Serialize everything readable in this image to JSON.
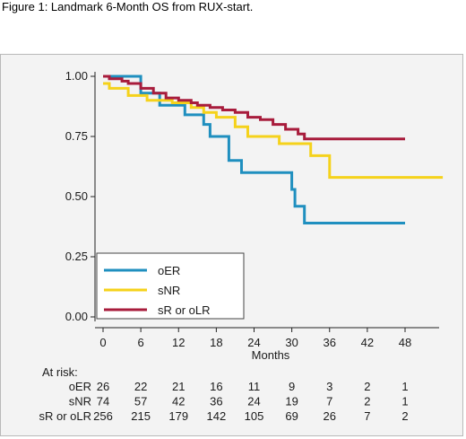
{
  "figure": {
    "caption": "Figure 1: Landmark 6-Month OS from RUX-start."
  },
  "chart_data": {
    "type": "line",
    "step": true,
    "title": "",
    "xlabel": "Months",
    "ylabel": "",
    "xlim": [
      0,
      54
    ],
    "ylim": [
      0,
      1
    ],
    "x_ticks": [
      "0",
      "6",
      "12",
      "18",
      "24",
      "30",
      "36",
      "42",
      "48"
    ],
    "y_ticks": [
      "0.00",
      "0.25",
      "0.50",
      "0.75",
      "1.00"
    ],
    "grid": false,
    "legend": {
      "position": "bottom-left"
    },
    "colors": {
      "oER": "#1f8fbf",
      "sNR": "#f5d21b",
      "sR or oLR": "#a81c3c"
    },
    "series": [
      {
        "name": "oER",
        "points": [
          [
            0,
            1.0
          ],
          [
            6,
            1.0
          ],
          [
            6,
            0.93
          ],
          [
            9,
            0.93
          ],
          [
            9,
            0.88
          ],
          [
            13,
            0.88
          ],
          [
            13,
            0.84
          ],
          [
            16,
            0.84
          ],
          [
            16,
            0.8
          ],
          [
            17,
            0.8
          ],
          [
            17,
            0.75
          ],
          [
            20,
            0.75
          ],
          [
            20,
            0.65
          ],
          [
            22,
            0.65
          ],
          [
            22,
            0.6
          ],
          [
            30,
            0.6
          ],
          [
            30,
            0.53
          ],
          [
            30.5,
            0.53
          ],
          [
            30.5,
            0.46
          ],
          [
            32,
            0.46
          ],
          [
            32,
            0.39
          ],
          [
            48,
            0.39
          ]
        ]
      },
      {
        "name": "sNR",
        "points": [
          [
            0,
            0.97
          ],
          [
            1,
            0.97
          ],
          [
            1,
            0.95
          ],
          [
            4,
            0.95
          ],
          [
            4,
            0.92
          ],
          [
            7,
            0.92
          ],
          [
            7,
            0.9
          ],
          [
            11,
            0.9
          ],
          [
            11,
            0.89
          ],
          [
            14,
            0.89
          ],
          [
            14,
            0.87
          ],
          [
            16,
            0.87
          ],
          [
            16,
            0.85
          ],
          [
            18,
            0.85
          ],
          [
            18,
            0.83
          ],
          [
            21,
            0.83
          ],
          [
            21,
            0.79
          ],
          [
            23,
            0.79
          ],
          [
            23,
            0.75
          ],
          [
            28,
            0.75
          ],
          [
            28,
            0.72
          ],
          [
            33,
            0.72
          ],
          [
            33,
            0.67
          ],
          [
            36,
            0.67
          ],
          [
            36,
            0.58
          ],
          [
            54,
            0.58
          ]
        ]
      },
      {
        "name": "sR or oLR",
        "points": [
          [
            0,
            1.0
          ],
          [
            1,
            1.0
          ],
          [
            1,
            0.99
          ],
          [
            3,
            0.99
          ],
          [
            3,
            0.98
          ],
          [
            4,
            0.98
          ],
          [
            4,
            0.97
          ],
          [
            6,
            0.97
          ],
          [
            6,
            0.95
          ],
          [
            8,
            0.95
          ],
          [
            8,
            0.93
          ],
          [
            10,
            0.93
          ],
          [
            10,
            0.91
          ],
          [
            12,
            0.91
          ],
          [
            12,
            0.9
          ],
          [
            14,
            0.9
          ],
          [
            14,
            0.89
          ],
          [
            15,
            0.89
          ],
          [
            15,
            0.88
          ],
          [
            17,
            0.88
          ],
          [
            17,
            0.87
          ],
          [
            19,
            0.87
          ],
          [
            19,
            0.86
          ],
          [
            21,
            0.86
          ],
          [
            21,
            0.85
          ],
          [
            23,
            0.85
          ],
          [
            23,
            0.83
          ],
          [
            25,
            0.83
          ],
          [
            25,
            0.82
          ],
          [
            27,
            0.82
          ],
          [
            27,
            0.8
          ],
          [
            29,
            0.8
          ],
          [
            29,
            0.78
          ],
          [
            31,
            0.78
          ],
          [
            31,
            0.76
          ],
          [
            32,
            0.76
          ],
          [
            32,
            0.74
          ],
          [
            48,
            0.74
          ]
        ]
      }
    ],
    "at_risk": {
      "heading": "At risk:",
      "times": [
        "0",
        "6",
        "12",
        "18",
        "24",
        "30",
        "36",
        "42",
        "48"
      ],
      "rows": [
        {
          "label": "oER",
          "values": [
            "26",
            "22",
            "21",
            "16",
            "11",
            "9",
            "3",
            "2",
            "1"
          ]
        },
        {
          "label": "sNR",
          "values": [
            "74",
            "57",
            "42",
            "36",
            "24",
            "19",
            "7",
            "2",
            "1"
          ]
        },
        {
          "label": "sR or oLR",
          "values": [
            "256",
            "215",
            "179",
            "142",
            "105",
            "69",
            "26",
            "7",
            "2"
          ]
        }
      ]
    }
  }
}
